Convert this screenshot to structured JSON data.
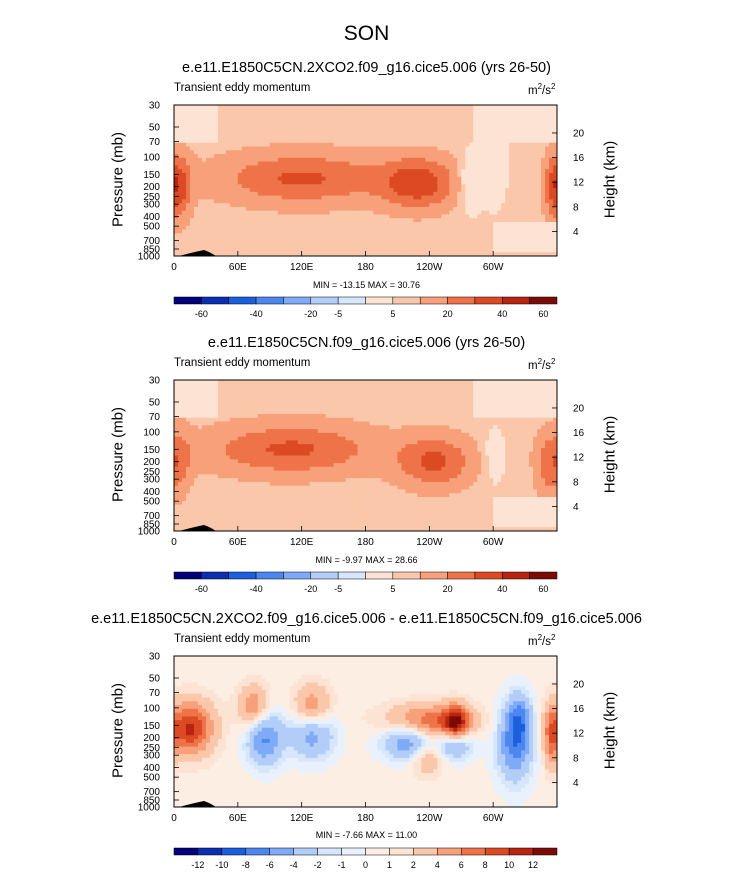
{
  "page_title": "SON",
  "chart_data": [
    {
      "type": "heatmap",
      "title": "e.e11.E1850C5CN.2XCO2.f09_g16.cice5.006 (yrs 26-50)",
      "subtitle": "Transient eddy momentum",
      "units_base": "m",
      "units_sup1": "2",
      "units_mid": "/s",
      "units_sup2": "2",
      "ylabel": "Pressure (mb)",
      "ylabel_right": "Height (km)",
      "y_ticks": [
        "30",
        "50",
        "70",
        "100",
        "150",
        "200",
        "250",
        "300",
        "400",
        "500",
        "700",
        "850",
        "1000"
      ],
      "y_ticks_right": [
        "20",
        "16",
        "12",
        "8",
        "4"
      ],
      "x_ticks": [
        "0",
        "60E",
        "120E",
        "180",
        "120W",
        "60W"
      ],
      "min_max": "MIN = -13.15  MAX = 30.76",
      "colorbar_labels": [
        "-60",
        "-40",
        "-20",
        "-5",
        "5",
        "20",
        "40",
        "60"
      ],
      "blobs": [
        {
          "lon": 120,
          "p": 165,
          "value": 26,
          "rx": 55,
          "ry": 0.12
        },
        {
          "lon": 230,
          "p": 185,
          "value": 30,
          "rx": 25,
          "ry": 0.12
        },
        {
          "lon": 5,
          "p": 200,
          "value": 28,
          "rx": 8,
          "ry": 0.15
        },
        {
          "lon": 278,
          "p": 180,
          "value": -12,
          "rx": 8,
          "ry": 0.12
        },
        {
          "lon": 300,
          "p": 130,
          "value": -8,
          "rx": 8,
          "ry": 0.15
        },
        {
          "lon": 355,
          "p": 200,
          "value": 15,
          "rx": 6,
          "ry": 0.15
        }
      ]
    },
    {
      "type": "heatmap",
      "title": "e.e11.E1850C5CN.f09_g16.cice5.006 (yrs 26-50)",
      "subtitle": "Transient eddy momentum",
      "units_base": "m",
      "units_sup1": "2",
      "units_mid": "/s",
      "units_sup2": "2",
      "ylabel": "Pressure (mb)",
      "ylabel_right": "Height (km)",
      "y_ticks": [
        "30",
        "50",
        "70",
        "100",
        "150",
        "200",
        "250",
        "300",
        "400",
        "500",
        "700",
        "850",
        "1000"
      ],
      "y_ticks_right": [
        "20",
        "16",
        "12",
        "8",
        "4"
      ],
      "x_ticks": [
        "0",
        "60E",
        "120E",
        "180",
        "120W",
        "60W"
      ],
      "min_max": "MIN = -9.97  MAX = 28.66",
      "colorbar_labels": [
        "-60",
        "-40",
        "-20",
        "-5",
        "5",
        "20",
        "40",
        "60"
      ],
      "blobs": [
        {
          "lon": 110,
          "p": 150,
          "value": 26,
          "rx": 55,
          "ry": 0.12
        },
        {
          "lon": 245,
          "p": 200,
          "value": 26,
          "rx": 25,
          "ry": 0.12
        },
        {
          "lon": 5,
          "p": 200,
          "value": 18,
          "rx": 8,
          "ry": 0.15
        },
        {
          "lon": 300,
          "p": 180,
          "value": -6,
          "rx": 8,
          "ry": 0.12
        },
        {
          "lon": 350,
          "p": 220,
          "value": 16,
          "rx": 8,
          "ry": 0.15
        }
      ]
    },
    {
      "type": "heatmap",
      "title": "e.e11.E1850C5CN.2XCO2.f09_g16.cice5.006 - e.e11.E1850C5CN.f09_g16.cice5.006",
      "subtitle": "Transient eddy momentum",
      "units_base": "m",
      "units_sup1": "2",
      "units_mid": "/s",
      "units_sup2": "2",
      "ylabel": "Pressure (mb)",
      "ylabel_right": "Height (km)",
      "y_ticks": [
        "30",
        "50",
        "70",
        "100",
        "150",
        "200",
        "250",
        "300",
        "400",
        "500",
        "700",
        "850",
        "1000"
      ],
      "y_ticks_right": [
        "20",
        "16",
        "12",
        "8",
        "4"
      ],
      "x_ticks": [
        "0",
        "60E",
        "120E",
        "180",
        "120W",
        "60W"
      ],
      "min_max": "MIN = -7.66  MAX = 11.00",
      "colorbar_labels": [
        "-12",
        "-10",
        "-8",
        "-6",
        "-4",
        "-2",
        "-1",
        "0",
        "1",
        "2",
        "4",
        "6",
        "8",
        "10",
        "12"
      ],
      "blobs": [
        {
          "lon": 15,
          "p": 160,
          "value": 10,
          "rx": 15,
          "ry": 0.12
        },
        {
          "lon": 85,
          "p": 200,
          "value": -7,
          "rx": 12,
          "ry": 0.13
        },
        {
          "lon": 75,
          "p": 100,
          "value": 6,
          "rx": 10,
          "ry": 0.1
        },
        {
          "lon": 130,
          "p": 180,
          "value": -6,
          "rx": 15,
          "ry": 0.12
        },
        {
          "lon": 130,
          "p": 100,
          "value": 6,
          "rx": 12,
          "ry": 0.1
        },
        {
          "lon": 240,
          "p": 140,
          "value": 8,
          "rx": 28,
          "ry": 0.08
        },
        {
          "lon": 265,
          "p": 145,
          "value": 10,
          "rx": 8,
          "ry": 0.08
        },
        {
          "lon": 220,
          "p": 210,
          "value": -7,
          "rx": 18,
          "ry": 0.09
        },
        {
          "lon": 265,
          "p": 220,
          "value": -6,
          "rx": 12,
          "ry": 0.08
        },
        {
          "lon": 320,
          "p": 230,
          "value": -7,
          "rx": 12,
          "ry": 0.18
        },
        {
          "lon": 325,
          "p": 130,
          "value": -5,
          "rx": 8,
          "ry": 0.12
        },
        {
          "lon": 238,
          "p": 320,
          "value": 4,
          "rx": 10,
          "ry": 0.08
        },
        {
          "lon": 355,
          "p": 200,
          "value": 5,
          "rx": 5,
          "ry": 0.15
        }
      ]
    }
  ]
}
